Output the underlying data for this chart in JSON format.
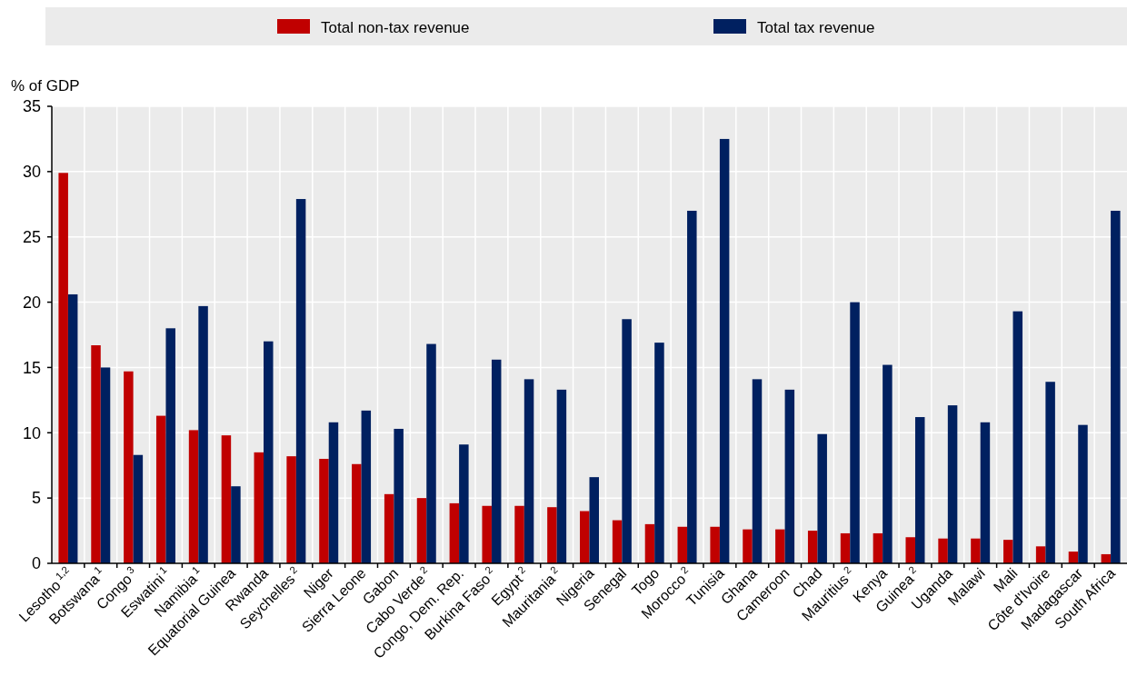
{
  "chart_data": {
    "type": "bar",
    "ylabel": "% of GDP",
    "categories": [
      "Lesotho $^{1,2}$",
      "Botswana $^{1}$",
      "Congo $^{3}$",
      "Eswatini $^{1}$",
      "Namibia $^{1}$",
      "Equatorial Guinea",
      "Rwanda",
      "Seychelles $^{2}$",
      "Niger",
      "Sierra Leone",
      "Gabon",
      "Cabo Verde $^{2}$",
      "Congo, Dem. Rep.",
      "Burkina Faso $^{2}$",
      "Egypt $^{2}$",
      "Mauritania $^{2}$",
      "Nigeria",
      "Senegal",
      "Togo",
      "Morocco $^{2}$",
      "Tunisia",
      "Ghana",
      "Cameroon",
      "Chad",
      "Mauritius $^{2}$",
      "Kenya",
      "Guinea $^{2}$",
      "Uganda",
      "Malawi",
      "Mali",
      "Côte d'Ivoire",
      "Madagascar",
      "South Africa"
    ],
    "series": [
      {
        "name": "Total non-tax revenue",
        "color": "#c00000",
        "values": [
          29.9,
          16.7,
          14.7,
          11.3,
          10.2,
          9.8,
          8.5,
          8.2,
          8.0,
          7.6,
          5.3,
          5.0,
          4.6,
          4.4,
          4.4,
          4.3,
          4.0,
          3.3,
          3.0,
          2.8,
          2.8,
          2.6,
          2.6,
          2.5,
          2.3,
          2.3,
          2.0,
          1.9,
          1.9,
          1.8,
          1.3,
          0.9,
          0.7
        ]
      },
      {
        "name": "Total tax revenue",
        "color": "#002060",
        "values": [
          20.6,
          15.0,
          8.3,
          18.0,
          19.7,
          5.9,
          17.0,
          27.9,
          10.8,
          11.7,
          10.3,
          16.8,
          9.1,
          15.6,
          14.1,
          13.3,
          6.6,
          18.7,
          16.9,
          27.0,
          32.5,
          14.1,
          13.3,
          9.9,
          20.0,
          15.2,
          11.2,
          12.1,
          10.8,
          19.3,
          13.9,
          10.6,
          27.0
        ]
      }
    ],
    "ylim": [
      0,
      35
    ],
    "yticks": [
      0,
      5,
      10,
      15,
      20,
      25,
      30,
      35
    ],
    "grid": true,
    "legend": "top"
  }
}
